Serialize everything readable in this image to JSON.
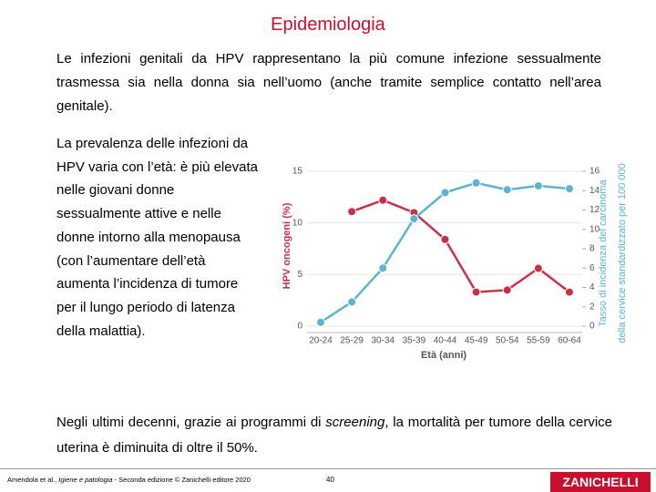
{
  "header": {
    "title": "Epidemiologia"
  },
  "intro": "Le infezioni genitali da HPV rappresentano la più comune infezione sessualmente trasmessa sia nella donna sia nell’uomo (anche tramite semplice contatto nell’area genitale).",
  "side_text": "La prevalenza delle infezioni da HPV varia con l’età: è più elevata nelle giovani donne sessualmente attive e nelle donne intorno alla menopausa (con l’aumentare dell’età aumenta l’incidenza di tumore per il lungo periodo di latenza della malattia).",
  "closing": [
    "Negli ultimi decenni, grazie ai programmi di ",
    "screening",
    ", la mortalità per tumore della cervice uterina è diminuita di oltre il 50%."
  ],
  "footer": {
    "citation": [
      "Amendola et al., ",
      "Igiene e patologia",
      " - Seconda edizione © Zanichelli editore 2020"
    ],
    "page": "40",
    "brand": "ZANICHELLI"
  },
  "chart_data": {
    "type": "line",
    "xlabel": "Età (anni)",
    "ylabel": "HPV oncogeni (%)",
    "y2label": [
      "Tasso di incidenza del carcinoma",
      "della cervice standardizzato per 100 000"
    ],
    "categories": [
      "20-24",
      "25-29",
      "30-34",
      "35-39",
      "40-44",
      "45-49",
      "50-54",
      "55-59",
      "60-64"
    ],
    "ylim": [
      0,
      15
    ],
    "yticks": [
      0,
      5,
      10,
      15
    ],
    "y2lim": [
      0,
      16
    ],
    "y2ticks": [
      0,
      2,
      4,
      6,
      8,
      10,
      12,
      14,
      16
    ],
    "grid": true,
    "series": [
      {
        "color": "#c8304a",
        "values": [
          null,
          11.1,
          12.2,
          11.0,
          8.4,
          3.3,
          3.5,
          5.6,
          3.3
        ]
      },
      {
        "color": "#5bb4d0",
        "axis": "y2",
        "values": [
          0.4,
          2.5,
          6.0,
          11.1,
          13.8,
          14.8,
          14.1,
          14.5,
          14.2
        ]
      }
    ]
  }
}
